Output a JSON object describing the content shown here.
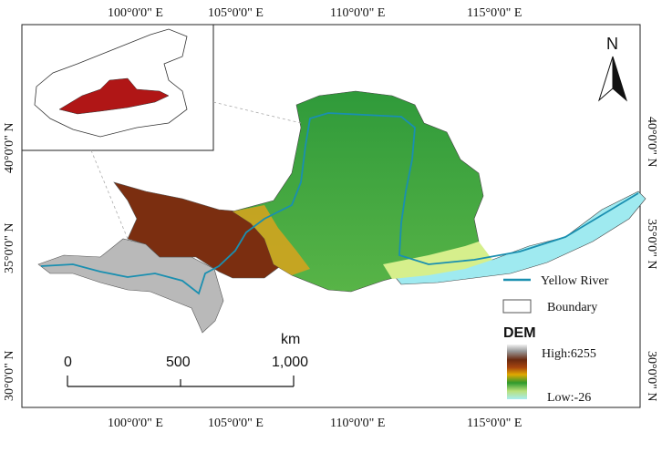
{
  "map": {
    "longitude_labels": [
      "100°0'0\" E",
      "105°0'0\" E",
      "110°0'0\" E",
      "115°0'0\" E"
    ],
    "latitude_labels": [
      "40°0'0\" N",
      "35°0'0\" N",
      "30°0'0\" N"
    ],
    "north_arrow": "N",
    "legend": {
      "river_label": "Yellow River",
      "boundary_label": "Boundary",
      "dem_title": "DEM",
      "dem_high": "High:6255",
      "dem_low": "Low:-26",
      "river_color": "#1a8fb0"
    },
    "scale_bar": {
      "unit": "km",
      "ticks": [
        "0",
        "500",
        "1,000"
      ]
    },
    "inset": {
      "highlight_color": "#b01616"
    }
  }
}
